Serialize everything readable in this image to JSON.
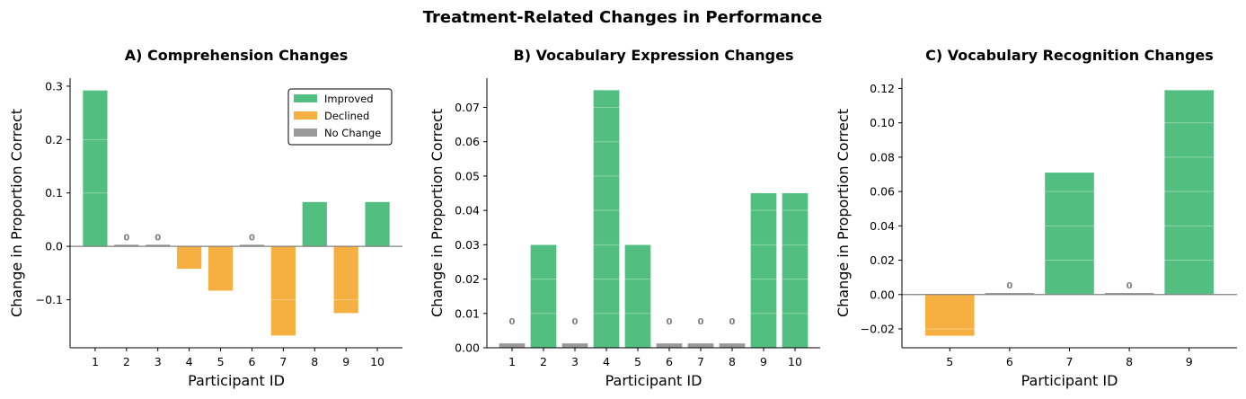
{
  "figure": {
    "title": "Treatment-Related Changes in Performance"
  },
  "colors": {
    "improved": "#52be80",
    "declined": "#f5b041",
    "no_change": "#999999",
    "zero_line": "#808080"
  },
  "legend": {
    "placement": "top-right",
    "entries": [
      {
        "key": "improved",
        "label": "Improved"
      },
      {
        "key": "declined",
        "label": "Declined"
      },
      {
        "key": "no_change",
        "label": "No Change"
      }
    ]
  },
  "chart_data": [
    {
      "type": "bar",
      "title": "A) Comprehension Changes",
      "xlabel": "Participant ID",
      "ylabel": "Change in Proportion Correct",
      "categories": [
        "1",
        "2",
        "3",
        "4",
        "5",
        "6",
        "7",
        "8",
        "9",
        "10"
      ],
      "values": [
        0.292,
        0,
        0,
        -0.042,
        -0.083,
        0,
        -0.167,
        0.083,
        -0.125,
        0.083
      ],
      "ylim": [
        -0.19,
        0.315
      ],
      "yticks": [
        -0.1,
        0.0,
        0.1,
        0.2,
        0.3
      ],
      "ytick_labels": [
        "−0.1",
        "0.0",
        "0.1",
        "0.2",
        "0.3"
      ],
      "zero_label": "0",
      "has_legend": true
    },
    {
      "type": "bar",
      "title": "B) Vocabulary Expression Changes",
      "xlabel": "Participant ID",
      "ylabel": "Change in Proportion Correct",
      "categories": [
        "1",
        "2",
        "3",
        "4",
        "5",
        "6",
        "7",
        "8",
        "9",
        "10"
      ],
      "values": [
        0,
        0.03,
        0,
        0.075,
        0.03,
        0,
        0,
        0,
        0.045,
        0.045
      ],
      "ylim": [
        0,
        0.0785
      ],
      "yticks": [
        0.0,
        0.01,
        0.02,
        0.03,
        0.04,
        0.05,
        0.06,
        0.07
      ],
      "ytick_labels": [
        "0.00",
        "0.01",
        "0.02",
        "0.03",
        "0.04",
        "0.05",
        "0.06",
        "0.07"
      ],
      "zero_label": "0",
      "has_legend": false
    },
    {
      "type": "bar",
      "title": "C) Vocabulary Recognition Changes",
      "xlabel": "Participant ID",
      "ylabel": "Change in Proportion Correct",
      "categories": [
        "5",
        "6",
        "7",
        "8",
        "9"
      ],
      "values": [
        -0.024,
        0,
        0.071,
        0,
        0.119
      ],
      "ylim": [
        -0.031,
        0.126
      ],
      "yticks": [
        -0.02,
        0.0,
        0.02,
        0.04,
        0.06,
        0.08,
        0.1,
        0.12
      ],
      "ytick_labels": [
        "−0.02",
        "0.00",
        "0.02",
        "0.04",
        "0.06",
        "0.08",
        "0.10",
        "0.12"
      ],
      "zero_label": "0",
      "has_legend": false
    }
  ]
}
